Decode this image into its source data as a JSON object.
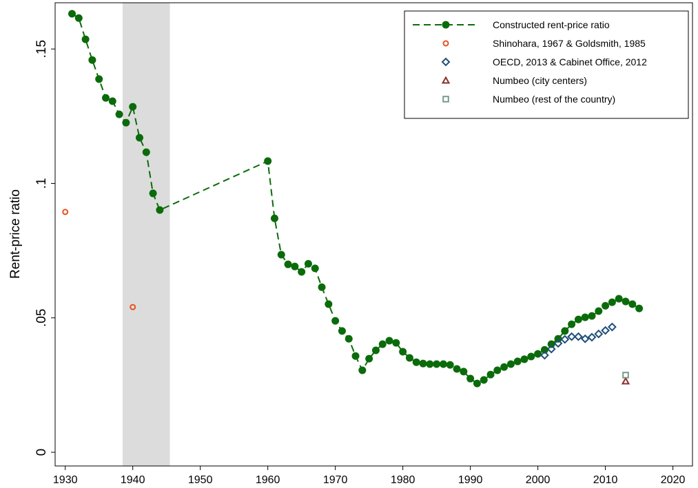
{
  "chart_data": {
    "type": "line",
    "y_label": "Rent-price ratio",
    "xlim": [
      1928.5,
      2022.9
    ],
    "ylim": [
      -0.0051,
      0.1672
    ],
    "xticks": [
      1930,
      1940,
      1950,
      1960,
      1970,
      1980,
      1990,
      2000,
      2010,
      2020
    ],
    "yticks": [
      0,
      {
        "value": 0.05,
        "label": ".05"
      },
      {
        "value": 0.1,
        "label": ".1"
      },
      {
        "value": 0.15,
        "label": ".15"
      }
    ],
    "shade": [
      1938.5,
      1945.5
    ],
    "legend": "top-right",
    "series": [
      {
        "name": "Constructed rent-price ratio",
        "color": "#0b6b0b",
        "marker": "circle-filled",
        "line": "dashed",
        "x": [
          1931,
          1932,
          1933,
          1934,
          1935,
          1936,
          1937,
          1938,
          1939,
          1940,
          1941,
          1942,
          1943,
          1944,
          1960,
          1961,
          1962,
          1963,
          1964,
          1965,
          1966,
          1967,
          1968,
          1969,
          1970,
          1971,
          1972,
          1973,
          1974,
          1975,
          1976,
          1977,
          1978,
          1979,
          1980,
          1981,
          1982,
          1983,
          1984,
          1985,
          1986,
          1987,
          1988,
          1989,
          1990,
          1991,
          1992,
          1993,
          1994,
          1995,
          1996,
          1997,
          1998,
          1999,
          2000,
          2001,
          2002,
          2003,
          2004,
          2005,
          2006,
          2007,
          2008,
          2009,
          2010,
          2011,
          2012,
          2013,
          2014,
          2015
        ],
        "values": [
          0.1631,
          0.1615,
          0.1536,
          0.1459,
          0.1388,
          0.1318,
          0.1306,
          0.1257,
          0.1226,
          0.1285,
          0.117,
          0.1116,
          0.0963,
          0.0901,
          0.1083,
          0.087,
          0.0735,
          0.0699,
          0.0691,
          0.0671,
          0.0701,
          0.0684,
          0.0614,
          0.0551,
          0.0489,
          0.0451,
          0.0422,
          0.0358,
          0.0305,
          0.0348,
          0.0379,
          0.0402,
          0.0415,
          0.0407,
          0.0374,
          0.0351,
          0.0335,
          0.033,
          0.0328,
          0.0328,
          0.0328,
          0.0325,
          0.031,
          0.03,
          0.0274,
          0.0256,
          0.0269,
          0.0289,
          0.0305,
          0.0317,
          0.0328,
          0.0338,
          0.0346,
          0.0356,
          0.0366,
          0.0381,
          0.0402,
          0.0422,
          0.0451,
          0.0476,
          0.0494,
          0.0502,
          0.0507,
          0.0525,
          0.0545,
          0.0558,
          0.0571,
          0.0561,
          0.0551,
          0.0535
        ]
      },
      {
        "name": "Shinohara, 1967 & Goldsmith, 1985",
        "color": "#e8501e",
        "marker": "circle-open",
        "x": [
          1930,
          1940
        ],
        "values": [
          0.0894,
          0.054
        ]
      },
      {
        "name": "OECD, 2013 & Cabinet Office, 2012",
        "color": "#1f4e79",
        "marker": "diamond",
        "x": [
          2001,
          2002,
          2003,
          2004,
          2005,
          2006,
          2007,
          2008,
          2009,
          2010,
          2011
        ],
        "values": [
          0.0361,
          0.0384,
          0.0405,
          0.042,
          0.043,
          0.043,
          0.0422,
          0.0428,
          0.044,
          0.0453,
          0.0466
        ]
      },
      {
        "name": "Numbeo (city centers)",
        "color": "#8b2e2e",
        "marker": "triangle",
        "x": [
          2013
        ],
        "values": [
          0.0264
        ]
      },
      {
        "name": "Numbeo (rest of the country)",
        "color": "#7a9a8a",
        "marker": "square",
        "x": [
          2013
        ],
        "values": [
          0.0287
        ]
      }
    ]
  }
}
